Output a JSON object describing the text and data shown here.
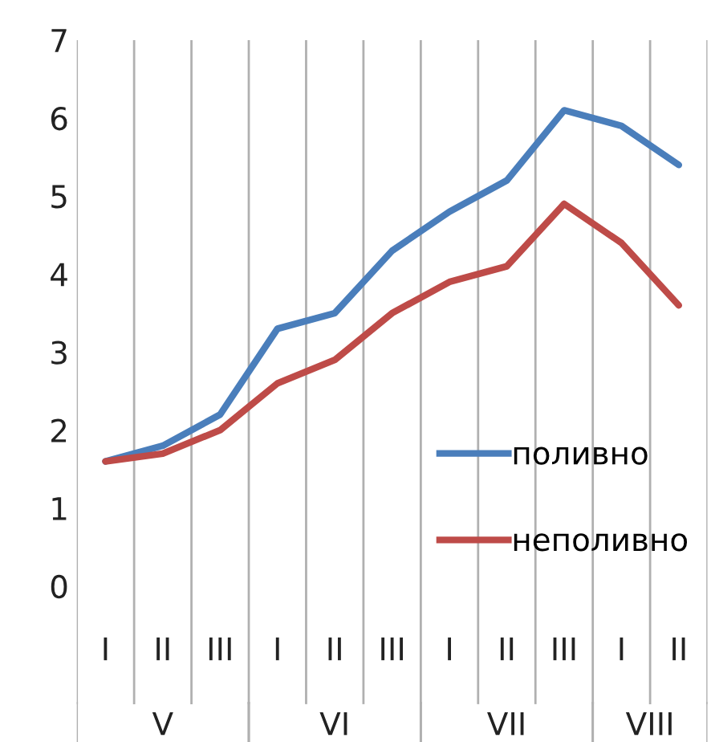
{
  "chart_data": {
    "type": "line",
    "categories": [
      "I",
      "II",
      "III",
      "I",
      "II",
      "III",
      "I",
      "II",
      "III",
      "I",
      "II"
    ],
    "series": [
      {
        "name": "поливно",
        "color": "#4a7ebb",
        "values": [
          1.6,
          1.8,
          2.2,
          3.3,
          3.5,
          4.3,
          4.8,
          5.2,
          6.1,
          5.9,
          5.4
        ]
      },
      {
        "name": "неполивно",
        "color": "#be4b48",
        "values": [
          1.6,
          1.7,
          2.0,
          2.6,
          2.9,
          3.5,
          3.9,
          4.1,
          4.9,
          4.4,
          3.6
        ]
      }
    ],
    "annotations": [
      "V",
      "VI",
      "VII",
      "VIII"
    ],
    "ylim": [
      0,
      7
    ],
    "yticks": [
      0,
      1,
      2,
      3,
      4,
      5,
      6,
      7
    ],
    "grid": "x",
    "legend": "lower right",
    "marker": "none",
    "line_style": "solid"
  }
}
